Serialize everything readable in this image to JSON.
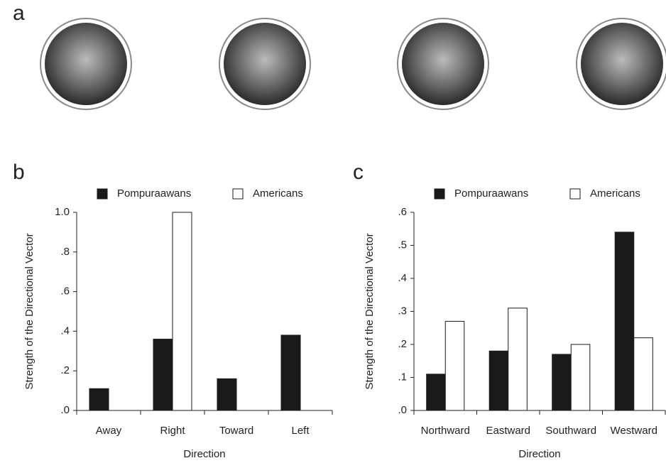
{
  "panel_labels": [
    "a",
    "b",
    "c"
  ],
  "chart_data": [
    {
      "type": "bar",
      "y_label": "Strength of the Directional Vector",
      "x_label": "Direction",
      "categories": [
        "Away",
        "Right",
        "Toward",
        "Left"
      ],
      "series": [
        {
          "name": "Pompuraawans",
          "color": "#1a1a1a",
          "values": [
            0.11,
            0.36,
            0.16,
            0.38
          ]
        },
        {
          "name": "Americans",
          "color": "#ffffff",
          "values": [
            0,
            1.0,
            0,
            0
          ]
        }
      ],
      "ylim": [
        0,
        1.0
      ],
      "yticks": [
        {
          "value": 0,
          "label": ".0"
        },
        {
          "value": 0.2,
          "label": ".2"
        },
        {
          "value": 0.4,
          "label": ".4"
        },
        {
          "value": 0.6,
          "label": ".6"
        },
        {
          "value": 0.8,
          "label": ".8"
        },
        {
          "value": 1.0,
          "label": "1.0"
        }
      ]
    },
    {
      "type": "bar",
      "y_label": "Strength of the Directional Vector",
      "x_label": "Direction",
      "categories": [
        "Northward",
        "Eastward",
        "Southward",
        "Westward"
      ],
      "series": [
        {
          "name": "Pompuraawans",
          "color": "#1a1a1a",
          "values": [
            0.11,
            0.18,
            0.17,
            0.54
          ]
        },
        {
          "name": "Americans",
          "color": "#ffffff",
          "values": [
            0.27,
            0.31,
            0.2,
            0.22
          ]
        }
      ],
      "ylim": [
        0,
        0.6
      ],
      "yticks": [
        {
          "value": 0,
          "label": ".0"
        },
        {
          "value": 0.1,
          "label": ".1"
        },
        {
          "value": 0.2,
          "label": ".2"
        },
        {
          "value": 0.3,
          "label": ".3"
        },
        {
          "value": 0.4,
          "label": ".4"
        },
        {
          "value": 0.5,
          "label": ".5"
        },
        {
          "value": 0.6,
          "label": ".6"
        }
      ]
    }
  ]
}
